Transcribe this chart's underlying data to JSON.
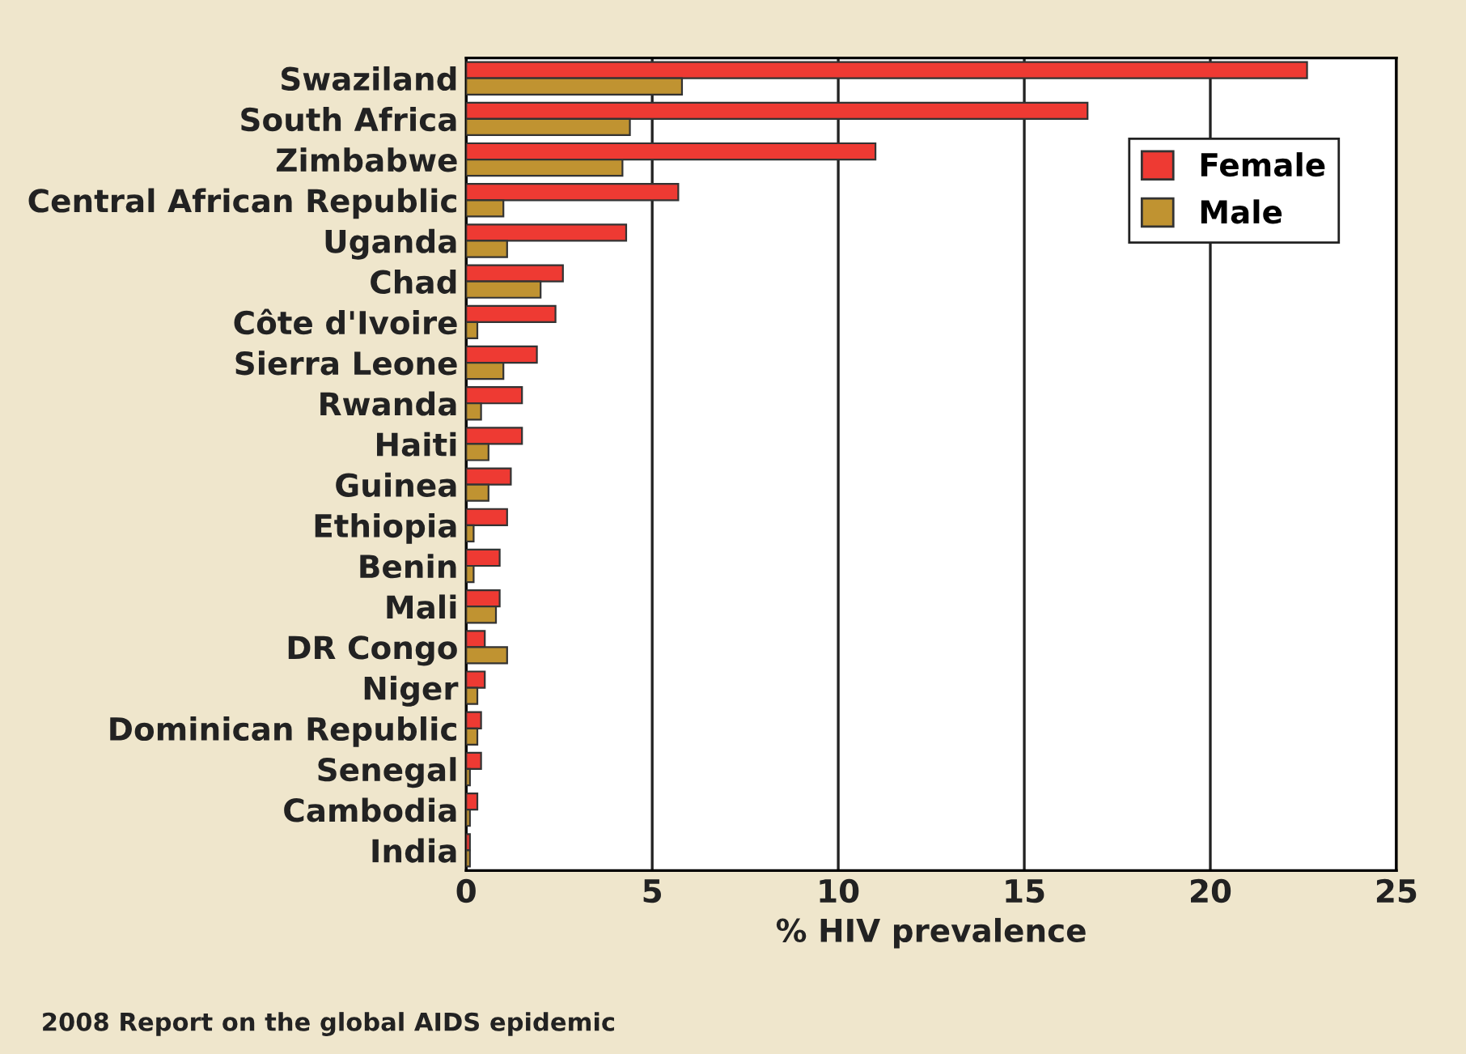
{
  "chart_data": {
    "type": "bar",
    "orientation": "horizontal",
    "xlabel": "% HIV prevalence",
    "categories": [
      "Swaziland",
      "South Africa",
      "Zimbabwe",
      "Central African Republic",
      "Uganda",
      "Chad",
      "Côte d'Ivoire",
      "Sierra Leone",
      "Rwanda",
      "Haiti",
      "Guinea",
      "Ethiopia",
      "Benin",
      "Mali",
      "DR Congo",
      "Niger",
      "Dominican Republic",
      "Senegal",
      "Cambodia",
      "India"
    ],
    "series": [
      {
        "name": "Female",
        "color": "#ee3a33",
        "values": [
          22.6,
          16.7,
          11.0,
          5.7,
          4.3,
          2.6,
          2.4,
          1.9,
          1.5,
          1.5,
          1.2,
          1.1,
          0.9,
          0.9,
          0.5,
          0.5,
          0.4,
          0.4,
          0.3,
          0.1
        ]
      },
      {
        "name": "Male",
        "color": "#c09331",
        "values": [
          5.8,
          4.4,
          4.2,
          1.0,
          1.1,
          2.0,
          0.3,
          1.0,
          0.4,
          0.6,
          0.6,
          0.2,
          0.2,
          0.8,
          1.1,
          0.3,
          0.3,
          0.1,
          0.1,
          0.1
        ]
      }
    ],
    "xlim": [
      0,
      25
    ],
    "xticks": [
      0,
      5,
      10,
      15,
      20,
      25
    ],
    "grid": "x",
    "legend": "top right",
    "annotations": [
      "2008 Report on the global AIDS epidemic"
    ]
  }
}
